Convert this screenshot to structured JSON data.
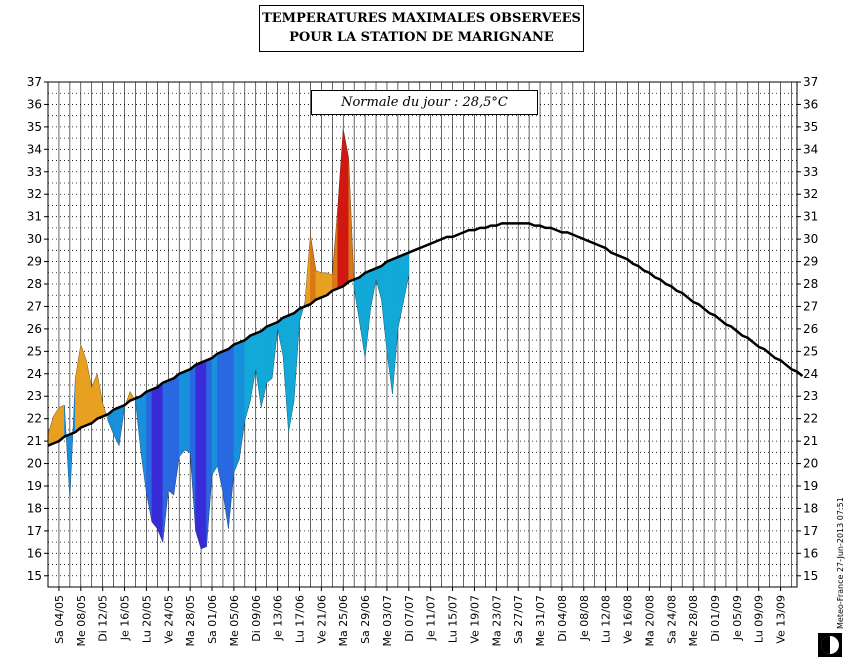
{
  "chart_data": {
    "type": "area",
    "title_line1": "TEMPERATURES MAXIMALES OBSERVEES",
    "title_line2": "POUR LA STATION DE MARIGNANE",
    "annotation": "Normale du jour : 28,5°C",
    "ylim": [
      14.5,
      37
    ],
    "y_ticks": [
      15,
      16,
      17,
      18,
      19,
      20,
      21,
      22,
      23,
      24,
      25,
      26,
      27,
      28,
      29,
      30,
      31,
      32,
      33,
      34,
      35,
      36,
      37
    ],
    "x_tick_labels": [
      "Sa 04/05",
      "Me 08/05",
      "Di 12/05",
      "Je 16/05",
      "Lu 20/05",
      "Ve 24/05",
      "Ma 28/05",
      "Sa 01/06",
      "Me 05/06",
      "Di 09/06",
      "Je 13/06",
      "Lu 17/06",
      "Ve 21/06",
      "Ma 25/06",
      "Sa 29/06",
      "Me 03/07",
      "Di 07/07",
      "Je 11/07",
      "Lu 15/07",
      "Ve 19/07",
      "Ma 23/07",
      "Sa 27/07",
      "Me 31/07",
      "Di 04/08",
      "Je 08/08",
      "Lu 12/08",
      "Ve 16/08",
      "Ma 20/08",
      "Sa 24/08",
      "Me 28/08",
      "Di 01/09",
      "Je 05/09",
      "Lu 09/09",
      "Ve 13/09"
    ],
    "day_count": 138,
    "series": [
      {
        "name": "Normale",
        "start_day": 0,
        "values": [
          20.8,
          20.9,
          21.0,
          21.2,
          21.3,
          21.4,
          21.6,
          21.7,
          21.8,
          22.0,
          22.1,
          22.2,
          22.4,
          22.5,
          22.6,
          22.8,
          22.9,
          23.0,
          23.2,
          23.3,
          23.4,
          23.6,
          23.7,
          23.8,
          24.0,
          24.1,
          24.2,
          24.4,
          24.5,
          24.6,
          24.7,
          24.9,
          25.0,
          25.1,
          25.3,
          25.4,
          25.5,
          25.7,
          25.8,
          25.9,
          26.1,
          26.2,
          26.3,
          26.5,
          26.6,
          26.7,
          26.9,
          27.0,
          27.1,
          27.3,
          27.4,
          27.5,
          27.7,
          27.8,
          27.9,
          28.1,
          28.2,
          28.3,
          28.5,
          28.6,
          28.7,
          28.8,
          29.0,
          29.1,
          29.2,
          29.3,
          29.4,
          29.5,
          29.6,
          29.7,
          29.8,
          29.9,
          30.0,
          30.1,
          30.1,
          30.2,
          30.3,
          30.4,
          30.4,
          30.5,
          30.5,
          30.6,
          30.6,
          30.7,
          30.7,
          30.7,
          30.7,
          30.7,
          30.7,
          30.6,
          30.6,
          30.5,
          30.5,
          30.4,
          30.3,
          30.3,
          30.2,
          30.1,
          30.0,
          29.9,
          29.8,
          29.7,
          29.6,
          29.4,
          29.3,
          29.2,
          29.1,
          28.9,
          28.8,
          28.6,
          28.5,
          28.3,
          28.2,
          28.0,
          27.9,
          27.7,
          27.6,
          27.4,
          27.2,
          27.1,
          26.9,
          26.7,
          26.6,
          26.4,
          26.2,
          26.1,
          25.9,
          25.7,
          25.6,
          25.4,
          25.2,
          25.1,
          24.9,
          24.7,
          24.6,
          24.4,
          24.2,
          24.1,
          23.9
        ]
      },
      {
        "name": "Maximales observées",
        "start_day": 0,
        "values": [
          21.3,
          22.1,
          22.5,
          22.6,
          18.4,
          23.8,
          25.3,
          24.6,
          23.4,
          24.0,
          22.7,
          21.9,
          21.3,
          20.8,
          22.5,
          23.2,
          22.8,
          20.5,
          18.7,
          17.4,
          17.1,
          16.5,
          18.8,
          18.6,
          20.3,
          20.6,
          20.5,
          17.0,
          16.2,
          16.3,
          19.5,
          19.9,
          18.7,
          17.1,
          19.6,
          20.2,
          21.9,
          22.8,
          24.2,
          22.5,
          23.6,
          23.8,
          26.0,
          24.8,
          21.4,
          22.8,
          26.3,
          27.2,
          30.2,
          28.6,
          28.5,
          28.5,
          28.4,
          31.4,
          34.9,
          33.6,
          27.8,
          26.3,
          24.7,
          26.9,
          28.2,
          27.3,
          25.0,
          23.1,
          26.0,
          27.2,
          28.4
        ]
      }
    ],
    "xlabel": "",
    "ylabel": "",
    "credit": "Meteo-France 27-Jun-2013 07:51",
    "colors": {
      "blue_cold": "#3a2bd8",
      "blue_mid": "#12a8d8",
      "orange": "#e8a020",
      "red": "#d01810"
    }
  }
}
